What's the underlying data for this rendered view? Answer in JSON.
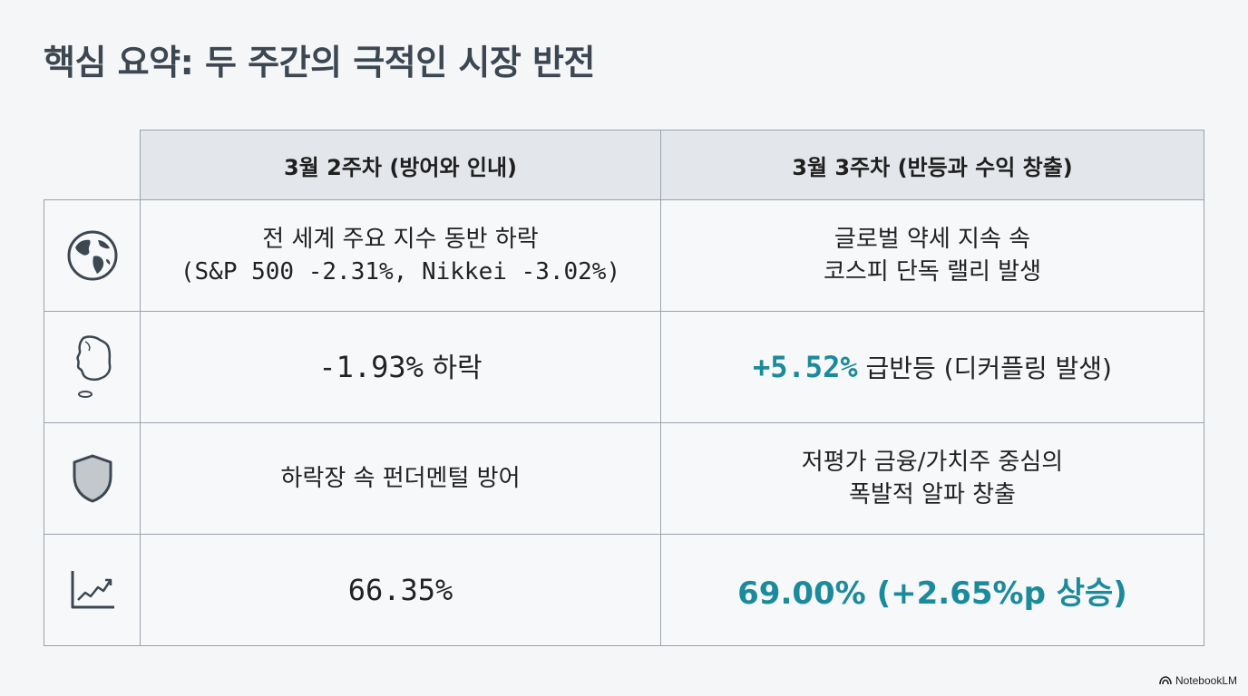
{
  "title": "핵심 요약: 두 주간의 극적인 시장 반전",
  "columns": [
    "3월 2주차 (방어와 인내)",
    "3월 3주차 (반등과 수익 창출)"
  ],
  "rows": [
    {
      "icon": "globe-icon",
      "week2_line1": "전 세계 주요 지수 동반 하락",
      "week2_line2": "(S&P 500 -2.31%, Nikkei -3.02%)",
      "week3_line1": "글로벌 약세 지속 속",
      "week3_line2": "코스피 단독 랠리 발생"
    },
    {
      "icon": "korea-map-icon",
      "week2_value": "-1.93%",
      "week2_suffix": " 하락",
      "week3_value": "+5.52%",
      "week3_suffix": " 급반등 (디커플링 발생)"
    },
    {
      "icon": "shield-icon",
      "week2_text": "하락장 속 펀더멘털 방어",
      "week3_line1": "저평가 금융/가치주 중심의",
      "week3_line2": "폭발적 알파 창출"
    },
    {
      "icon": "trend-chart-icon",
      "week2_value": "66.35%",
      "week3_value": "69.00% (+2.65%p 상승)"
    }
  ],
  "brand": "NotebookLM",
  "colors": {
    "accent": "#1b8a9c",
    "title": "#3c4752",
    "header_bg": "#e3e6ea",
    "border": "#9aa3ad"
  }
}
